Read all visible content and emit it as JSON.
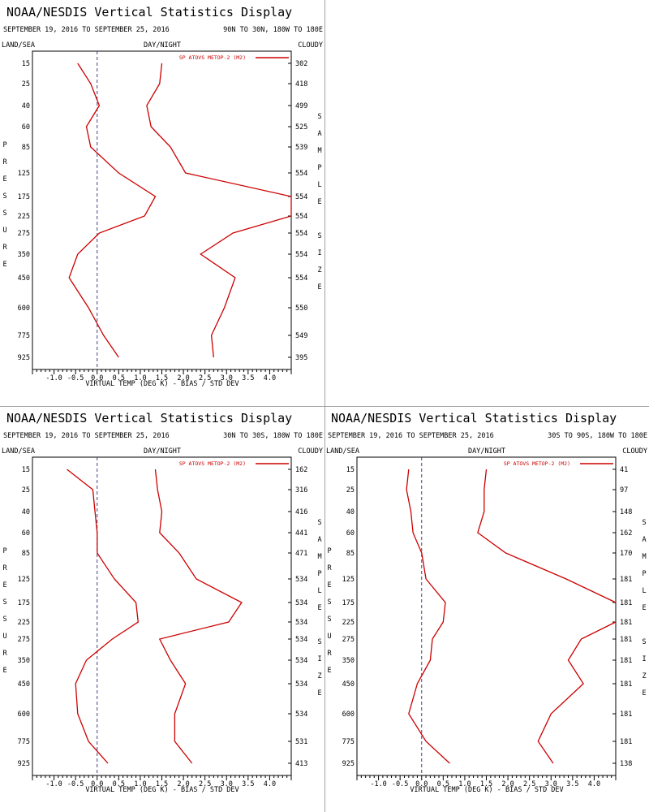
{
  "colors": {
    "series": "#cc0000",
    "axis": "#000000",
    "zero_line": "#404080",
    "divider": "#a0a0a0"
  },
  "chart_data": [
    {
      "type": "line",
      "title": "NOAA/NESDIS Vertical Statistics Display",
      "date_range": "SEPTEMBER 19, 2016 TO SEPTEMBER 25, 2016",
      "region": "90N TO 30N, 180W TO 180E",
      "header_left": "LAND/SEA",
      "header_center": "DAY/NIGHT",
      "header_right": "CLOUDY",
      "left_label": "PRESSURE",
      "right_label": "SAMPLE SIZE",
      "xlabel": "VIRTUAL TEMP (DEG K) - BIAS / STD DEV",
      "legend": "SP ATOVS METOP-2 (M2)",
      "xlim": [
        -1.5,
        4.5
      ],
      "x_ticks": [
        "-1.0",
        "-0.5",
        "0.0",
        "0.5",
        "1.0",
        "1.5",
        "2.0",
        "2.5",
        "3.0",
        "3.5",
        "4.0"
      ],
      "pressure_levels": [
        "15",
        "25",
        "40",
        "60",
        "85",
        "125",
        "175",
        "225",
        "275",
        "350",
        "450",
        "600",
        "775",
        "925"
      ],
      "sample_size": [
        "302",
        "418",
        "499",
        "525",
        "539",
        "554",
        "554",
        "554",
        "554",
        "554",
        "554",
        "550",
        "549",
        "395"
      ],
      "series": [
        {
          "name": "bias",
          "values": [
            -0.45,
            -0.15,
            0.05,
            -0.25,
            -0.15,
            0.5,
            1.35,
            1.1,
            0.05,
            -0.45,
            -0.65,
            -0.2,
            0.15,
            0.5
          ]
        },
        {
          "name": "std_dev",
          "values": [
            1.5,
            1.45,
            1.15,
            1.25,
            1.7,
            2.05,
            4.5,
            4.5,
            3.15,
            2.4,
            3.2,
            2.95,
            2.65,
            2.7
          ]
        }
      ]
    },
    {
      "type": "line",
      "title": "NOAA/NESDIS Vertical Statistics Display",
      "date_range": "SEPTEMBER 19, 2016 TO SEPTEMBER 25, 2016",
      "region": "30N TO 30S, 180W TO 180E",
      "header_left": "LAND/SEA",
      "header_center": "DAY/NIGHT",
      "header_right": "CLOUDY",
      "left_label": "PRESSURE",
      "right_label": "SAMPLE SIZE",
      "xlabel": "VIRTUAL TEMP (DEG K) - BIAS / STD DEV",
      "legend": "SP ATOVS METOP-2 (M2)",
      "xlim": [
        -1.5,
        4.5
      ],
      "x_ticks": [
        "-1.0",
        "-0.5",
        "0.0",
        "0.5",
        "1.0",
        "1.5",
        "2.0",
        "2.5",
        "3.0",
        "3.5",
        "4.0"
      ],
      "pressure_levels": [
        "15",
        "25",
        "40",
        "60",
        "85",
        "125",
        "175",
        "225",
        "275",
        "350",
        "450",
        "600",
        "775",
        "925"
      ],
      "sample_size": [
        "162",
        "316",
        "416",
        "441",
        "471",
        "534",
        "534",
        "534",
        "534",
        "534",
        "534",
        "534",
        "531",
        "413"
      ],
      "series": [
        {
          "name": "bias",
          "values": [
            -0.7,
            -0.1,
            -0.05,
            0.0,
            0.0,
            0.4,
            0.9,
            0.95,
            0.35,
            -0.25,
            -0.5,
            -0.45,
            -0.2,
            0.25
          ]
        },
        {
          "name": "std_dev",
          "values": [
            1.35,
            1.4,
            1.5,
            1.45,
            1.9,
            2.3,
            3.35,
            3.05,
            1.45,
            1.7,
            2.05,
            1.8,
            1.8,
            2.2
          ]
        }
      ]
    },
    {
      "type": "line",
      "title": "NOAA/NESDIS Vertical Statistics Display",
      "date_range": "SEPTEMBER 19, 2016 TO SEPTEMBER 25, 2016",
      "region": "30S TO 90S, 180W TO 180E",
      "header_left": "LAND/SEA",
      "header_center": "DAY/NIGHT",
      "header_right": "CLOUDY",
      "left_label": "PRESSURE",
      "right_label": "SAMPLE SIZE",
      "xlabel": "VIRTUAL TEMP (DEG K) - BIAS / STD DEV",
      "legend": "SP ATOVS METOP-2 (M2)",
      "xlim": [
        -1.5,
        4.5
      ],
      "x_ticks": [
        "-1.0",
        "-0.5",
        "0.0",
        "0.5",
        "1.0",
        "1.5",
        "2.0",
        "2.5",
        "3.0",
        "3.5",
        "4.0"
      ],
      "pressure_levels": [
        "15",
        "25",
        "40",
        "60",
        "85",
        "125",
        "175",
        "225",
        "275",
        "350",
        "450",
        "600",
        "775",
        "925"
      ],
      "sample_size": [
        "41",
        "97",
        "148",
        "162",
        "170",
        "181",
        "181",
        "181",
        "181",
        "181",
        "181",
        "181",
        "181",
        "138"
      ],
      "series": [
        {
          "name": "bias",
          "values": [
            -0.3,
            -0.35,
            -0.25,
            -0.2,
            0.0,
            0.1,
            0.55,
            0.5,
            0.25,
            0.2,
            -0.1,
            -0.3,
            0.1,
            0.65
          ]
        },
        {
          "name": "std_dev",
          "values": [
            1.5,
            1.45,
            1.45,
            1.3,
            1.95,
            3.35,
            4.5,
            4.5,
            3.7,
            3.4,
            3.75,
            3.0,
            2.7,
            3.05
          ]
        }
      ]
    }
  ]
}
